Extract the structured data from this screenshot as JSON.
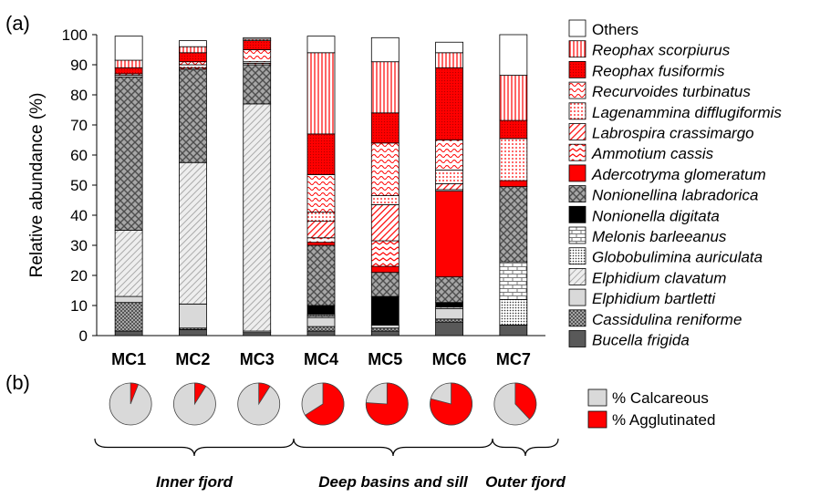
{
  "panel_labels": {
    "a": "(a)",
    "b": "(b)"
  },
  "chart_data": [
    {
      "type": "bar",
      "stacked": true,
      "ylabel": "Relative abundance (%)",
      "ylim": [
        0,
        100
      ],
      "yticks": [
        0,
        10,
        20,
        30,
        40,
        50,
        60,
        70,
        80,
        90,
        100
      ],
      "legend_position": "right",
      "categories": [
        "MC1",
        "MC2",
        "MC3",
        "MC4",
        "MC5",
        "MC6",
        "MC7"
      ],
      "series": [
        {
          "name": "Bucella frigida",
          "color": "#595959",
          "pattern": "solid-dark",
          "values": [
            1.5,
            2,
            1,
            1.5,
            1.5,
            4.5,
            3.5
          ]
        },
        {
          "name": "Cassidulina reniforme",
          "color": "#a6a6a6",
          "pattern": "checker",
          "values": [
            9.5,
            0.5,
            0,
            1.5,
            1,
            1,
            0
          ]
        },
        {
          "name": "Elphidium bartletti",
          "color": "#d9d9d9",
          "pattern": "solid-light",
          "values": [
            2,
            8,
            0.5,
            3,
            1,
            3.5,
            0
          ]
        },
        {
          "name": "Elphidium clavatum",
          "color": "#d9d9d9",
          "pattern": "diagonal",
          "values": [
            22,
            47,
            75.5,
            0.5,
            0,
            0.5,
            0
          ]
        },
        {
          "name": "Globobulimina auriculata",
          "color": "#ffffff",
          "pattern": "dots",
          "values": [
            0,
            0,
            0,
            0.5,
            0,
            0,
            8.5
          ]
        },
        {
          "name": "Melonis barleeanus",
          "color": "#ffffff",
          "pattern": "bricks",
          "values": [
            0,
            0,
            0,
            0,
            0,
            0,
            12.5
          ]
        },
        {
          "name": "Nonionella digitata",
          "color": "#000000",
          "pattern": "solid-black",
          "values": [
            0,
            0,
            0,
            3,
            9.5,
            1.5,
            0
          ]
        },
        {
          "name": "Nonionellina labradorica",
          "color": "#a6a6a6",
          "pattern": "crosshatch",
          "values": [
            51,
            31,
            13,
            20,
            8,
            8.5,
            25
          ]
        },
        {
          "name": "Adercotryma glomeratum",
          "color": "#ff0000",
          "pattern": "solid-red",
          "values": [
            0,
            0,
            0,
            1,
            2,
            28.5,
            2
          ]
        },
        {
          "name": "Ammotium cassis",
          "color": "#ff0000",
          "pattern": "chevrons",
          "values": [
            0.5,
            0.5,
            0.5,
            1.5,
            8.5,
            0.5,
            0
          ]
        },
        {
          "name": "Labrospira crassimargo",
          "color": "#ff0000",
          "pattern": "diagonal-red",
          "values": [
            0.5,
            0,
            0,
            5.5,
            12,
            2,
            0
          ]
        },
        {
          "name": "Lagenammina difflugiformis",
          "color": "#ff0000",
          "pattern": "dots-red",
          "values": [
            0,
            1,
            0.5,
            3,
            3,
            4.5,
            14
          ]
        },
        {
          "name": "Recurvoides turbinatus",
          "color": "#ff0000",
          "pattern": "waves-red",
          "values": [
            0,
            1,
            4,
            12.5,
            17.5,
            10,
            0
          ]
        },
        {
          "name": "Reophax fusiformis",
          "color": "#ff0000",
          "pattern": "dense-red",
          "values": [
            2,
            3,
            3,
            13.5,
            10,
            24,
            6
          ]
        },
        {
          "name": "Reophax scorpiurus",
          "color": "#ff0000",
          "pattern": "vertical-red",
          "values": [
            2.5,
            2,
            0.5,
            27,
            17,
            5,
            15
          ]
        },
        {
          "name": "Others",
          "color": "#ffffff",
          "pattern": "solid-white",
          "values": [
            8,
            2,
            0.5,
            5.5,
            8,
            3.5,
            13.5
          ]
        }
      ]
    },
    {
      "type": "pie",
      "categories": [
        "MC1",
        "MC2",
        "MC3",
        "MC4",
        "MC5",
        "MC6",
        "MC7"
      ],
      "series": [
        {
          "name": "% Calcareous",
          "color": "#d9d9d9",
          "values": [
            94,
            91,
            91,
            34,
            24,
            21,
            62
          ]
        },
        {
          "name": "% Agglutinated",
          "color": "#ff0000",
          "values": [
            6,
            9,
            9,
            66,
            76,
            79,
            38
          ]
        }
      ]
    }
  ],
  "regions": [
    {
      "label": "Inner fjord",
      "from": "MC1",
      "to": "MC3"
    },
    {
      "label": "Deep basins and sill",
      "from": "MC4",
      "to": "MC6"
    },
    {
      "label": "Outer fjord",
      "from": "MC7",
      "to": "MC7"
    }
  ]
}
